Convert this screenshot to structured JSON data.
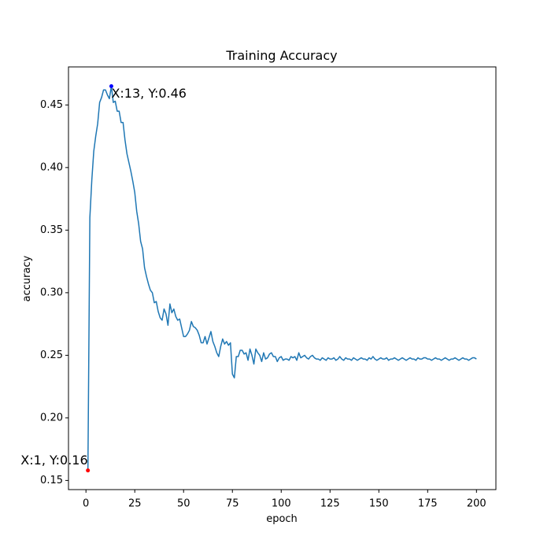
{
  "chart_data": {
    "type": "line",
    "title": "Training Accuracy",
    "x_label": "epoch",
    "y_label": "accuracy",
    "x": [
      1,
      2,
      3,
      4,
      5,
      6,
      7,
      8,
      9,
      10,
      11,
      12,
      13,
      14,
      15,
      16,
      17,
      18,
      19,
      20,
      21,
      22,
      23,
      24,
      25,
      26,
      27,
      28,
      29,
      30,
      31,
      32,
      33,
      34,
      35,
      36,
      37,
      38,
      39,
      40,
      41,
      42,
      43,
      44,
      45,
      46,
      47,
      48,
      49,
      50,
      51,
      52,
      53,
      54,
      55,
      56,
      57,
      58,
      59,
      60,
      61,
      62,
      63,
      64,
      65,
      66,
      67,
      68,
      69,
      70,
      71,
      72,
      73,
      74,
      75,
      76,
      77,
      78,
      79,
      80,
      81,
      82,
      83,
      84,
      85,
      86,
      87,
      88,
      89,
      90,
      91,
      92,
      93,
      94,
      95,
      96,
      97,
      98,
      99,
      100,
      101,
      102,
      103,
      104,
      105,
      106,
      107,
      108,
      109,
      110,
      111,
      112,
      113,
      114,
      115,
      116,
      117,
      118,
      119,
      120,
      121,
      122,
      123,
      124,
      125,
      126,
      127,
      128,
      129,
      130,
      131,
      132,
      133,
      134,
      135,
      136,
      137,
      138,
      139,
      140,
      141,
      142,
      143,
      144,
      145,
      146,
      147,
      148,
      149,
      150,
      151,
      152,
      153,
      154,
      155,
      156,
      157,
      158,
      159,
      160,
      161,
      162,
      163,
      164,
      165,
      166,
      167,
      168,
      169,
      170,
      171,
      172,
      173,
      174,
      175,
      176,
      177,
      178,
      179,
      180,
      181,
      182,
      183,
      184,
      185,
      186,
      187,
      188,
      189,
      190,
      191,
      192,
      193,
      194,
      195,
      196,
      197,
      198,
      199,
      200
    ],
    "values": [
      0.158,
      0.36,
      0.39,
      0.413,
      0.425,
      0.435,
      0.452,
      0.456,
      0.462,
      0.462,
      0.458,
      0.455,
      0.465,
      0.452,
      0.453,
      0.445,
      0.445,
      0.436,
      0.436,
      0.422,
      0.411,
      0.404,
      0.397,
      0.389,
      0.38,
      0.365,
      0.355,
      0.341,
      0.335,
      0.32,
      0.313,
      0.307,
      0.302,
      0.3,
      0.292,
      0.293,
      0.285,
      0.28,
      0.278,
      0.287,
      0.283,
      0.274,
      0.291,
      0.284,
      0.287,
      0.281,
      0.278,
      0.279,
      0.272,
      0.265,
      0.265,
      0.267,
      0.27,
      0.277,
      0.273,
      0.272,
      0.27,
      0.266,
      0.26,
      0.26,
      0.265,
      0.259,
      0.264,
      0.269,
      0.261,
      0.257,
      0.252,
      0.249,
      0.257,
      0.263,
      0.259,
      0.261,
      0.258,
      0.26,
      0.235,
      0.232,
      0.249,
      0.249,
      0.254,
      0.254,
      0.251,
      0.252,
      0.246,
      0.255,
      0.25,
      0.243,
      0.255,
      0.252,
      0.25,
      0.245,
      0.252,
      0.247,
      0.248,
      0.251,
      0.252,
      0.249,
      0.249,
      0.245,
      0.248,
      0.249,
      0.246,
      0.247,
      0.247,
      0.246,
      0.249,
      0.248,
      0.249,
      0.246,
      0.252,
      0.248,
      0.249,
      0.25,
      0.248,
      0.247,
      0.249,
      0.25,
      0.248,
      0.247,
      0.247,
      0.246,
      0.248,
      0.247,
      0.246,
      0.248,
      0.247,
      0.247,
      0.248,
      0.246,
      0.247,
      0.249,
      0.247,
      0.246,
      0.248,
      0.247,
      0.247,
      0.246,
      0.248,
      0.247,
      0.246,
      0.247,
      0.248,
      0.247,
      0.247,
      0.246,
      0.248,
      0.247,
      0.249,
      0.247,
      0.246,
      0.247,
      0.248,
      0.247,
      0.247,
      0.248,
      0.246,
      0.247,
      0.247,
      0.248,
      0.247,
      0.246,
      0.247,
      0.248,
      0.247,
      0.246,
      0.247,
      0.248,
      0.247,
      0.247,
      0.246,
      0.248,
      0.247,
      0.247,
      0.248,
      0.248,
      0.247,
      0.247,
      0.246,
      0.247,
      0.248,
      0.247,
      0.247,
      0.246,
      0.247,
      0.248,
      0.247,
      0.246,
      0.247,
      0.247,
      0.248,
      0.247,
      0.246,
      0.247,
      0.248,
      0.247,
      0.247,
      0.246,
      0.247,
      0.248,
      0.248,
      0.247
    ],
    "color": "#1f77b4",
    "xlim": [
      -8.95,
      209.95
    ],
    "xticks": [
      0,
      25,
      50,
      75,
      100,
      125,
      150,
      175,
      200
    ],
    "ylim": [
      0.1427,
      0.4804
    ],
    "yticks": [
      0.15,
      {
        "value": 0.2,
        "label": "0.20"
      },
      0.25,
      {
        "value": 0.3,
        "label": "0.30"
      },
      0.35,
      {
        "value": 0.4,
        "label": "0.40"
      },
      0.45
    ],
    "annotations": [
      {
        "text": "X:1, Y:0.16",
        "x": 1,
        "y": 0.158,
        "color": "red"
      },
      {
        "text": "X:13, Y:0.46",
        "x": 13,
        "y": 0.465,
        "color": "blue"
      }
    ]
  }
}
